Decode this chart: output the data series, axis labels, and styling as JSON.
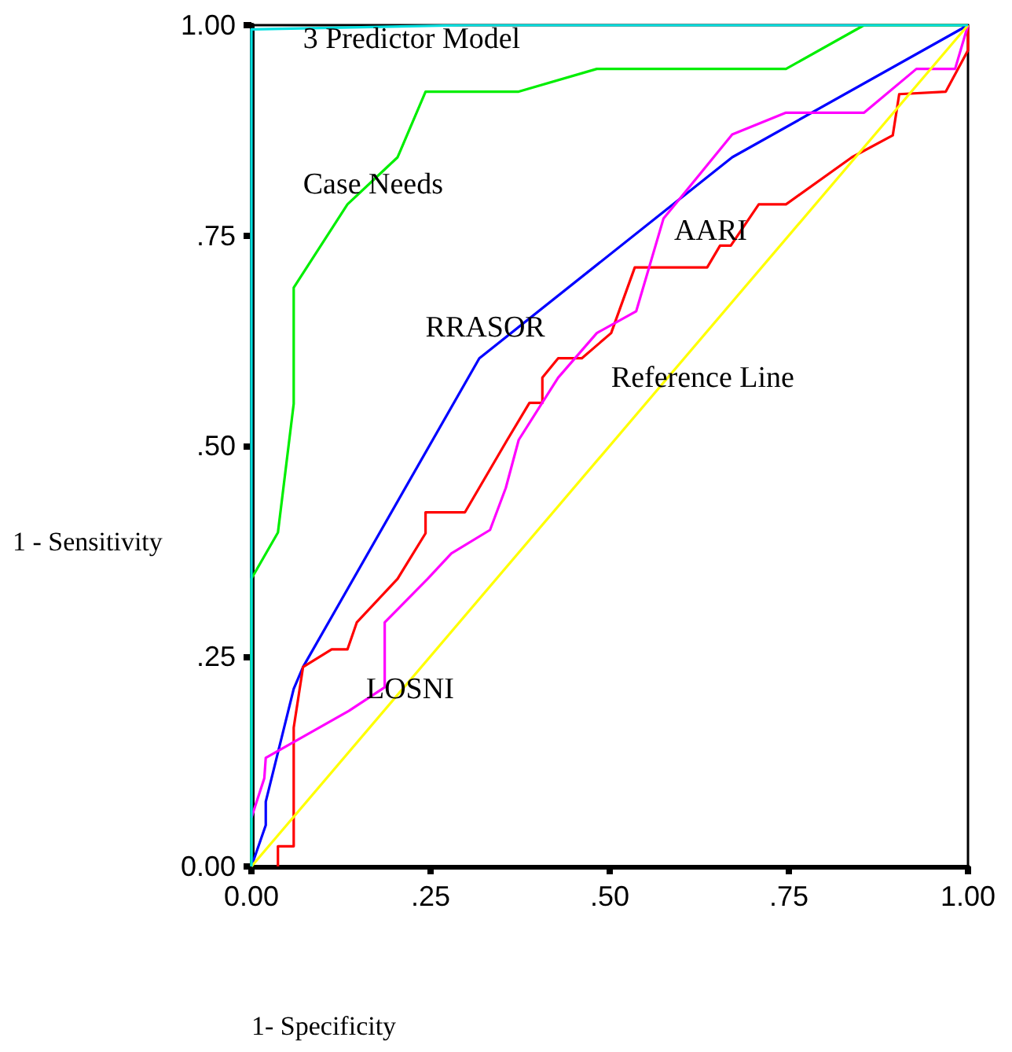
{
  "chart_data": {
    "type": "line",
    "xlabel": "1- Specificity",
    "ylabel": "1 - Sensitivity",
    "xlim": [
      0,
      1
    ],
    "ylim": [
      0,
      1
    ],
    "xticks": [
      {
        "value": 0,
        "label": "0.00"
      },
      {
        "value": 0.25,
        "label": ".25"
      },
      {
        "value": 0.5,
        "label": ".50"
      },
      {
        "value": 0.75,
        "label": ".75"
      },
      {
        "value": 1,
        "label": "1.00"
      }
    ],
    "yticks": [
      {
        "value": 0,
        "label": "0.00"
      },
      {
        "value": 0.25,
        "label": ".25"
      },
      {
        "value": 0.5,
        "label": ".50"
      },
      {
        "value": 0.75,
        "label": ".75"
      },
      {
        "value": 1,
        "label": "1.00"
      }
    ],
    "grid": false,
    "legend": false,
    "marker": "none",
    "line_style": "solid",
    "series": [
      {
        "name": "3 Predictor Model",
        "color": "#00e0e0",
        "x": [
          0,
          0,
          0.3,
          1
        ],
        "values": [
          0,
          0.995,
          1,
          1
        ]
      },
      {
        "name": "Case Needs",
        "color": "#00ee00",
        "x": [
          0,
          0,
          0.037,
          0.059,
          0.059,
          0.134,
          0.204,
          0.243,
          0.373,
          0.482,
          0.746,
          0.855,
          1
        ],
        "values": [
          0,
          0.342,
          0.397,
          0.55,
          0.688,
          0.787,
          0.843,
          0.921,
          0.921,
          0.948,
          0.948,
          1,
          1
        ]
      },
      {
        "name": "RRASOR",
        "color": "#0000ff",
        "x": [
          0,
          0.02,
          0.02,
          0.059,
          0.072,
          0.318,
          0.671,
          1
        ],
        "values": [
          0,
          0.049,
          0.077,
          0.211,
          0.237,
          0.604,
          0.843,
          1
        ]
      },
      {
        "name": "AARI",
        "color": "#ff0000",
        "x": [
          0.037,
          0.037,
          0.059,
          0.059,
          0.072,
          0.112,
          0.134,
          0.147,
          0.204,
          0.243,
          0.243,
          0.298,
          0.357,
          0.388,
          0.406,
          0.406,
          0.428,
          0.461,
          0.502,
          0.535,
          0.636,
          0.654,
          0.669,
          0.708,
          0.746,
          0.838,
          0.895,
          0.904,
          0.969,
          1,
          1
        ],
        "values": [
          0,
          0.024,
          0.024,
          0.165,
          0.237,
          0.258,
          0.258,
          0.29,
          0.342,
          0.396,
          0.421,
          0.421,
          0.507,
          0.551,
          0.551,
          0.581,
          0.604,
          0.604,
          0.634,
          0.712,
          0.712,
          0.738,
          0.738,
          0.787,
          0.787,
          0.843,
          0.869,
          0.918,
          0.921,
          0.97,
          1
        ]
      },
      {
        "name": "LOSNI",
        "color": "#ff00ff",
        "x": [
          0,
          0.018,
          0.02,
          0.136,
          0.186,
          0.186,
          0.246,
          0.279,
          0.333,
          0.355,
          0.373,
          0.428,
          0.482,
          0.537,
          0.575,
          0.671,
          0.746,
          0.855,
          0.928,
          0.982,
          1
        ],
        "values": [
          0.058,
          0.105,
          0.129,
          0.185,
          0.213,
          0.29,
          0.342,
          0.372,
          0.4,
          0.45,
          0.507,
          0.581,
          0.634,
          0.66,
          0.77,
          0.87,
          0.896,
          0.896,
          0.948,
          0.948,
          1
        ]
      },
      {
        "name": "Reference Line",
        "color": "#ffff00",
        "x": [
          0,
          1
        ],
        "values": [
          0,
          1
        ]
      }
    ]
  }
}
